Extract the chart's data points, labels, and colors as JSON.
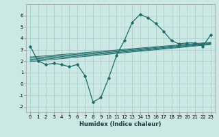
{
  "xlabel": "Humidex (Indice chaleur)",
  "ylabel": "",
  "background_color": "#cce8e4",
  "grid_color": "#aacfcc",
  "line_color": "#1a6b6b",
  "xlim": [
    -0.5,
    23.5
  ],
  "ylim": [
    -2.5,
    7.0
  ],
  "xticks": [
    0,
    1,
    2,
    3,
    4,
    5,
    6,
    7,
    8,
    9,
    10,
    11,
    12,
    13,
    14,
    15,
    16,
    17,
    18,
    19,
    20,
    21,
    22,
    23
  ],
  "yticks": [
    -2,
    -1,
    0,
    1,
    2,
    3,
    4,
    5,
    6
  ],
  "main_x": [
    0,
    1,
    2,
    3,
    4,
    5,
    6,
    7,
    8,
    9,
    10,
    11,
    12,
    13,
    14,
    15,
    16,
    17,
    18,
    19,
    20,
    21,
    22,
    23
  ],
  "main_y": [
    3.3,
    2.0,
    1.7,
    1.8,
    1.7,
    1.5,
    1.7,
    0.7,
    -1.6,
    -1.2,
    0.5,
    2.5,
    3.8,
    5.4,
    6.1,
    5.8,
    5.3,
    4.6,
    3.8,
    3.5,
    3.6,
    3.6,
    3.3,
    4.3
  ],
  "linear_lines": [
    {
      "x": [
        0,
        23
      ],
      "y": [
        1.95,
        3.45
      ]
    },
    {
      "x": [
        0,
        23
      ],
      "y": [
        2.05,
        3.5
      ]
    },
    {
      "x": [
        0,
        23
      ],
      "y": [
        2.15,
        3.55
      ]
    },
    {
      "x": [
        0,
        23
      ],
      "y": [
        2.25,
        3.6
      ]
    },
    {
      "x": [
        0,
        23
      ],
      "y": [
        2.35,
        3.65
      ]
    }
  ],
  "xlabel_fontsize": 6,
  "tick_fontsize": 5
}
